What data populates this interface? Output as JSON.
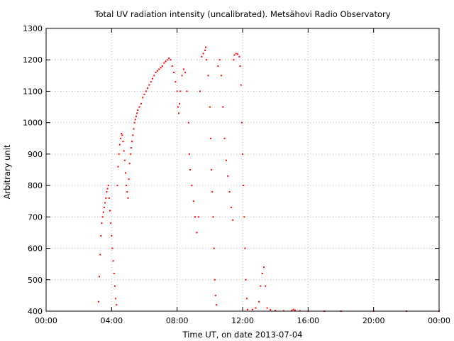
{
  "chart_data": {
    "type": "scatter",
    "title": "Total UV radiation intensity (uncalibrated). Metsähovi Radio Observatory",
    "xlabel": "Time UT, on date 2013-07-04",
    "ylabel": "Arbitrary unit",
    "x_unit": "hours UT",
    "xlim": [
      0,
      24
    ],
    "ylim": [
      400,
      1300
    ],
    "grid": true,
    "x_tick_labels": [
      "00:00",
      "04:00",
      "08:00",
      "12:00",
      "16:00",
      "20:00",
      "00:00"
    ],
    "y_tick_labels": [
      "400",
      "500",
      "600",
      "700",
      "800",
      "900",
      "1000",
      "1100",
      "1200",
      "1300"
    ],
    "colors": {
      "series": "#ff0000",
      "grid": "#bbbbbb",
      "axis": "#000000"
    },
    "series": [
      {
        "points": [
          [
            3.2,
            430
          ],
          [
            3.25,
            510
          ],
          [
            3.3,
            580
          ],
          [
            3.35,
            640
          ],
          [
            3.4,
            680
          ],
          [
            3.45,
            700
          ],
          [
            3.5,
            715
          ],
          [
            3.55,
            730
          ],
          [
            3.6,
            745
          ],
          [
            3.65,
            760
          ],
          [
            3.7,
            780
          ],
          [
            3.75,
            790
          ],
          [
            3.8,
            800
          ],
          [
            3.85,
            760
          ],
          [
            3.9,
            720
          ],
          [
            3.95,
            680
          ],
          [
            4.0,
            640
          ],
          [
            4.05,
            600
          ],
          [
            4.1,
            560
          ],
          [
            4.15,
            520
          ],
          [
            4.2,
            480
          ],
          [
            4.25,
            440
          ],
          [
            4.3,
            420
          ],
          [
            4.35,
            800
          ],
          [
            4.4,
            860
          ],
          [
            4.45,
            900
          ],
          [
            4.5,
            930
          ],
          [
            4.55,
            950
          ],
          [
            4.6,
            965
          ],
          [
            4.65,
            960
          ],
          [
            4.7,
            940
          ],
          [
            4.75,
            910
          ],
          [
            4.8,
            880
          ],
          [
            4.85,
            840
          ],
          [
            4.9,
            800
          ],
          [
            4.95,
            780
          ],
          [
            5.0,
            760
          ],
          [
            5.05,
            820
          ],
          [
            5.1,
            870
          ],
          [
            5.15,
            900
          ],
          [
            5.2,
            920
          ],
          [
            5.25,
            940
          ],
          [
            5.3,
            960
          ],
          [
            5.35,
            980
          ],
          [
            5.4,
            1000
          ],
          [
            5.45,
            1010
          ],
          [
            5.5,
            1020
          ],
          [
            5.55,
            1030
          ],
          [
            5.6,
            1040
          ],
          [
            5.7,
            1050
          ],
          [
            5.8,
            1060
          ],
          [
            5.9,
            1080
          ],
          [
            6.0,
            1090
          ],
          [
            6.1,
            1100
          ],
          [
            6.2,
            1110
          ],
          [
            6.3,
            1120
          ],
          [
            6.4,
            1130
          ],
          [
            6.5,
            1140
          ],
          [
            6.6,
            1150
          ],
          [
            6.7,
            1160
          ],
          [
            6.8,
            1165
          ],
          [
            6.9,
            1170
          ],
          [
            7.0,
            1175
          ],
          [
            7.1,
            1180
          ],
          [
            7.2,
            1190
          ],
          [
            7.3,
            1195
          ],
          [
            7.4,
            1200
          ],
          [
            7.5,
            1205
          ],
          [
            7.6,
            1200
          ],
          [
            7.7,
            1180
          ],
          [
            7.8,
            1160
          ],
          [
            7.9,
            1130
          ],
          [
            8.0,
            1100
          ],
          [
            8.05,
            1050
          ],
          [
            8.1,
            1030
          ],
          [
            8.15,
            1060
          ],
          [
            8.2,
            1100
          ],
          [
            8.3,
            1150
          ],
          [
            8.4,
            1170
          ],
          [
            8.5,
            1160
          ],
          [
            8.6,
            1100
          ],
          [
            8.7,
            1000
          ],
          [
            8.75,
            900
          ],
          [
            8.8,
            850
          ],
          [
            8.9,
            800
          ],
          [
            9.0,
            750
          ],
          [
            9.1,
            700
          ],
          [
            9.2,
            650
          ],
          [
            9.3,
            700
          ],
          [
            9.4,
            1100
          ],
          [
            9.5,
            1210
          ],
          [
            9.6,
            1220
          ],
          [
            9.7,
            1230
          ],
          [
            9.75,
            1240
          ],
          [
            9.8,
            1200
          ],
          [
            9.9,
            1150
          ],
          [
            10.0,
            1050
          ],
          [
            10.05,
            950
          ],
          [
            10.1,
            850
          ],
          [
            10.15,
            780
          ],
          [
            10.2,
            700
          ],
          [
            10.25,
            600
          ],
          [
            10.3,
            500
          ],
          [
            10.35,
            450
          ],
          [
            10.4,
            420
          ],
          [
            10.5,
            1180
          ],
          [
            10.6,
            1200
          ],
          [
            10.7,
            1150
          ],
          [
            10.8,
            1050
          ],
          [
            10.9,
            950
          ],
          [
            11.0,
            880
          ],
          [
            11.1,
            830
          ],
          [
            11.2,
            780
          ],
          [
            11.3,
            730
          ],
          [
            11.4,
            690
          ],
          [
            11.45,
            1200
          ],
          [
            11.5,
            1215
          ],
          [
            11.6,
            1220
          ],
          [
            11.7,
            1218
          ],
          [
            11.8,
            1210
          ],
          [
            11.85,
            1180
          ],
          [
            11.9,
            1120
          ],
          [
            11.95,
            1000
          ],
          [
            12.0,
            900
          ],
          [
            12.05,
            800
          ],
          [
            12.1,
            700
          ],
          [
            12.15,
            600
          ],
          [
            12.2,
            500
          ],
          [
            12.25,
            440
          ],
          [
            12.3,
            405
          ],
          [
            12.6,
            405
          ],
          [
            12.8,
            410
          ],
          [
            13.0,
            430
          ],
          [
            13.1,
            480
          ],
          [
            13.2,
            520
          ],
          [
            13.3,
            540
          ],
          [
            13.4,
            480
          ],
          [
            13.5,
            410
          ],
          [
            13.7,
            404
          ],
          [
            14.0,
            402
          ],
          [
            14.5,
            401
          ],
          [
            15.0,
            402
          ],
          [
            15.1,
            405
          ],
          [
            15.2,
            403
          ],
          [
            15.5,
            401
          ],
          [
            16.0,
            400
          ],
          [
            17.0,
            400
          ],
          [
            18.0,
            400
          ],
          [
            20.0,
            400
          ],
          [
            22.0,
            400
          ],
          [
            24.0,
            400
          ]
        ]
      }
    ]
  }
}
